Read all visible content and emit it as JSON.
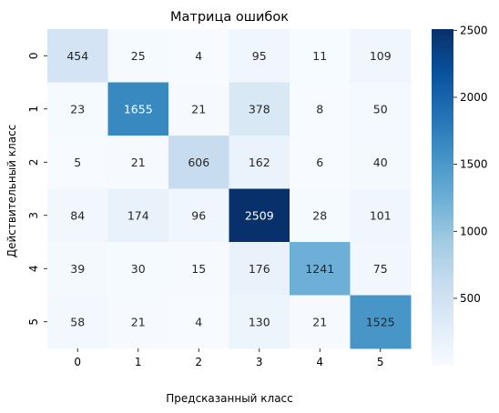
{
  "chart_data": {
    "type": "heatmap",
    "title": "Матрица ошибок",
    "xlabel": "Предсказанный класс",
    "ylabel": "Действительный класс",
    "x_categories": [
      "0",
      "1",
      "2",
      "3",
      "4",
      "5"
    ],
    "y_categories": [
      "0",
      "1",
      "2",
      "3",
      "4",
      "5"
    ],
    "values": [
      [
        454,
        25,
        4,
        95,
        11,
        109
      ],
      [
        23,
        1655,
        21,
        378,
        8,
        50
      ],
      [
        5,
        21,
        606,
        162,
        6,
        40
      ],
      [
        84,
        174,
        96,
        2509,
        28,
        101
      ],
      [
        39,
        30,
        15,
        176,
        1241,
        75
      ],
      [
        58,
        21,
        4,
        130,
        21,
        1525
      ]
    ],
    "colorscale": "Blues",
    "colorbar": {
      "range": [
        4,
        2509
      ],
      "ticks": [
        500,
        1000,
        1500,
        2000,
        2500
      ]
    },
    "grid": false
  }
}
